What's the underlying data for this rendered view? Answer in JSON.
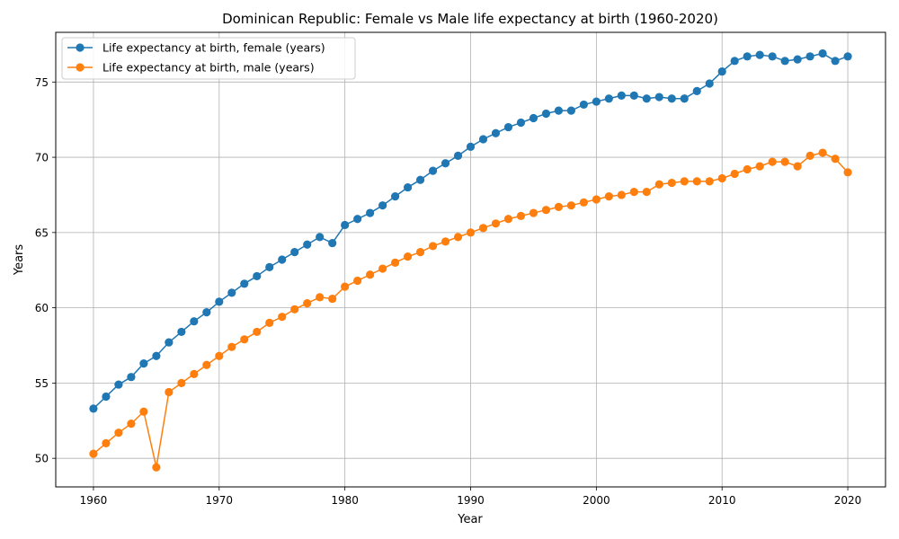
{
  "chart_data": {
    "type": "line",
    "title": "Dominican Republic: Female vs Male life expectancy at birth (1960-2020)",
    "xlabel": "Year",
    "ylabel": "Years",
    "xlim": [
      1957,
      2023
    ],
    "ylim": [
      48.1,
      78.3
    ],
    "xticks": [
      1960,
      1970,
      1980,
      1990,
      2000,
      2010,
      2020
    ],
    "yticks": [
      50,
      55,
      60,
      65,
      70,
      75
    ],
    "grid": true,
    "legend_position": "top-left",
    "x": [
      1960,
      1961,
      1962,
      1963,
      1964,
      1965,
      1966,
      1967,
      1968,
      1969,
      1970,
      1971,
      1972,
      1973,
      1974,
      1975,
      1976,
      1977,
      1978,
      1979,
      1980,
      1981,
      1982,
      1983,
      1984,
      1985,
      1986,
      1987,
      1988,
      1989,
      1990,
      1991,
      1992,
      1993,
      1994,
      1995,
      1996,
      1997,
      1998,
      1999,
      2000,
      2001,
      2002,
      2003,
      2004,
      2005,
      2006,
      2007,
      2008,
      2009,
      2010,
      2011,
      2012,
      2013,
      2014,
      2015,
      2016,
      2017,
      2018,
      2019,
      2020
    ],
    "series": [
      {
        "name": "Life expectancy at birth, female (years)",
        "color": "#1f77b4",
        "values": [
          53.3,
          54.1,
          54.9,
          55.4,
          56.3,
          56.8,
          57.7,
          58.4,
          59.1,
          59.7,
          60.4,
          61.0,
          61.6,
          62.1,
          62.7,
          63.2,
          63.7,
          64.2,
          64.7,
          64.3,
          65.5,
          65.9,
          66.3,
          66.8,
          67.4,
          68.0,
          68.5,
          69.1,
          69.6,
          70.1,
          70.7,
          71.2,
          71.6,
          72.0,
          72.3,
          72.6,
          72.9,
          73.1,
          73.1,
          73.5,
          73.7,
          73.9,
          74.1,
          74.1,
          73.9,
          74.0,
          73.9,
          73.9,
          74.4,
          74.9,
          75.7,
          76.4,
          76.7,
          76.8,
          76.7,
          76.4,
          76.5,
          76.7,
          76.9,
          76.4,
          76.7
        ]
      },
      {
        "name": "Life expectancy at birth, male (years)",
        "color": "#ff7f0e",
        "values": [
          50.3,
          51.0,
          51.7,
          52.3,
          53.1,
          49.4,
          54.4,
          55.0,
          55.6,
          56.2,
          56.8,
          57.4,
          57.9,
          58.4,
          59.0,
          59.4,
          59.9,
          60.3,
          60.7,
          60.6,
          61.4,
          61.8,
          62.2,
          62.6,
          63.0,
          63.4,
          63.7,
          64.1,
          64.4,
          64.7,
          65.0,
          65.3,
          65.6,
          65.9,
          66.1,
          66.3,
          66.5,
          66.7,
          66.8,
          67.0,
          67.2,
          67.4,
          67.5,
          67.7,
          67.7,
          68.2,
          68.3,
          68.4,
          68.4,
          68.4,
          68.6,
          68.9,
          69.2,
          69.4,
          69.7,
          69.7,
          69.4,
          70.1,
          70.3,
          69.9,
          69.0
        ]
      }
    ]
  }
}
